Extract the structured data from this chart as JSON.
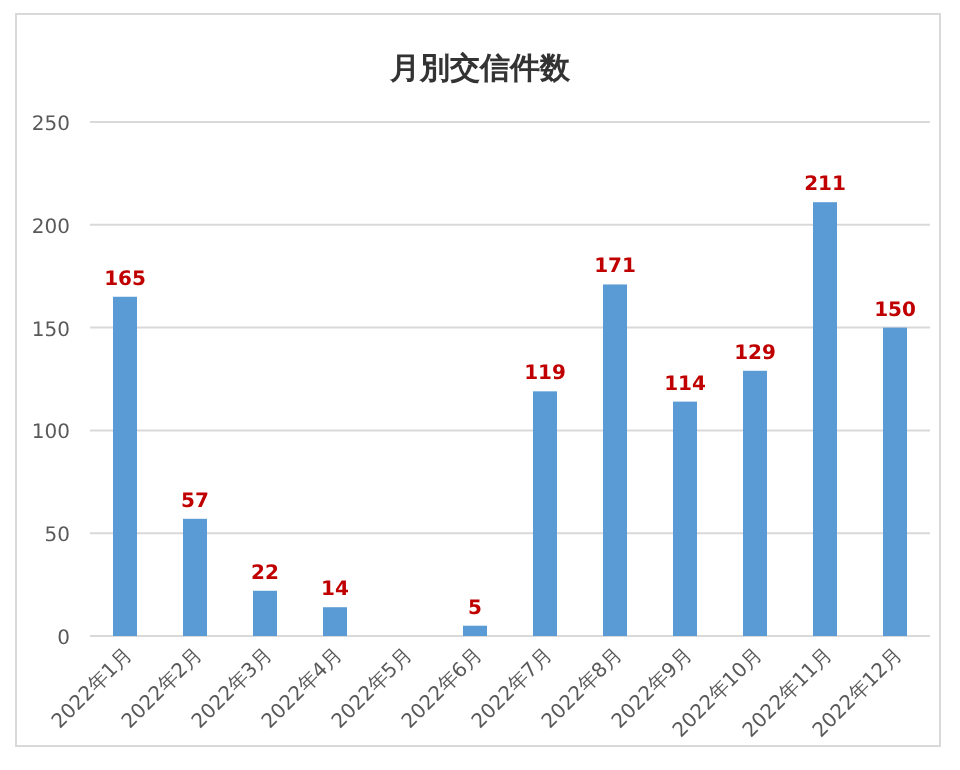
{
  "chart_data": {
    "type": "bar",
    "title": "月別交信件数",
    "categories": [
      "2022年1月",
      "2022年2月",
      "2022年3月",
      "2022年4月",
      "2022年5月",
      "2022年6月",
      "2022年7月",
      "2022年8月",
      "2022年9月",
      "2022年10月",
      "2022年11月",
      "2022年12月"
    ],
    "values": [
      165,
      57,
      22,
      14,
      null,
      5,
      119,
      171,
      114,
      129,
      211,
      150
    ],
    "color": "#5b9bd5",
    "ylim": [
      0,
      250
    ],
    "yticks": [
      0,
      50,
      100,
      150,
      200,
      250
    ],
    "grid": "y",
    "data_labels": true
  }
}
